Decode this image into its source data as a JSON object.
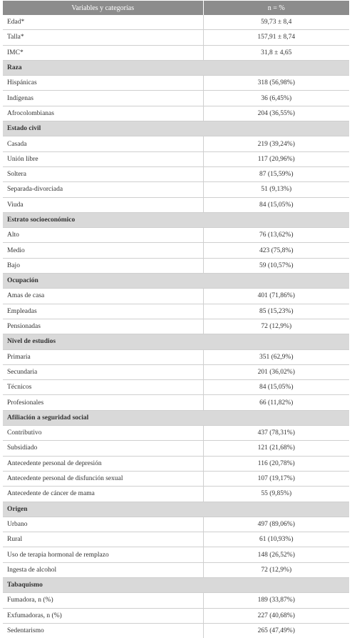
{
  "table": {
    "headers": [
      "Variables y categorías",
      "n = %"
    ],
    "rows": [
      {
        "label": "Edad*",
        "value": "59,73 ± 8,4"
      },
      {
        "label": "Talla*",
        "value": "157,91 ± 8,74"
      },
      {
        "label": "IMC*",
        "value": "31,8 ± 4,65"
      },
      {
        "label": "Raza",
        "section": true
      },
      {
        "label": "Hispánicas",
        "value": "318 (56,98%)"
      },
      {
        "label": "Indígenas",
        "value": "36 (6,45%)"
      },
      {
        "label": "Afrocolombianas",
        "value": "204 (36,55%)"
      },
      {
        "label": "Estado civil",
        "section": true
      },
      {
        "label": "Casada",
        "value": "219 (39,24%)"
      },
      {
        "label": "Unión libre",
        "value": "117 (20,96%)"
      },
      {
        "label": "Soltera",
        "value": "87 (15,59%)"
      },
      {
        "label": "Separada-divorciada",
        "value": "51 (9,13%)"
      },
      {
        "label": "Viuda",
        "value": "84 (15,05%)"
      },
      {
        "label": "Estrato socioeconómico",
        "section": true
      },
      {
        "label": "Alto",
        "value": "76 (13,62%)"
      },
      {
        "label": "Medio",
        "value": "423 (75,8%)"
      },
      {
        "label": "Bajo",
        "value": "59 (10,57%)"
      },
      {
        "label": "Ocupación",
        "section": true
      },
      {
        "label": "Amas de casa",
        "value": "401 (71,86%)"
      },
      {
        "label": "Empleadas",
        "value": "85 (15,23%)"
      },
      {
        "label": "Pensionadas",
        "value": "72 (12,9%)"
      },
      {
        "label": "Nivel de estudios",
        "section": true
      },
      {
        "label": "Primaria",
        "value": "351 (62,9%)"
      },
      {
        "label": "Secundaria",
        "value": "201 (36,02%)"
      },
      {
        "label": "Técnicos",
        "value": "84 (15,05%)"
      },
      {
        "label": "Profesionales",
        "value": "66 (11,82%)"
      },
      {
        "label": "Afiliación a seguridad social",
        "section": true
      },
      {
        "label": "Contributivo",
        "value": "437 (78,31%)"
      },
      {
        "label": "Subsidiado",
        "value": "121 (21,68%)"
      },
      {
        "label": "Antecedente personal de depresión",
        "value": "116 (20,78%)"
      },
      {
        "label": "Antecedente personal de disfunción sexual",
        "value": "107 (19,17%)"
      },
      {
        "label": "Antecedente de cáncer de mama",
        "value": "55 (9,85%)"
      },
      {
        "label": "Origen",
        "section": true
      },
      {
        "label": "Urbano",
        "value": "497 (89,06%)"
      },
      {
        "label": "Rural",
        "value": "61 (10,93%)"
      },
      {
        "label": "Uso de terapia hormonal de remplazo",
        "value": "148 (26,52%)"
      },
      {
        "label": "Ingesta de alcohol",
        "value": "72 (12,9%)"
      },
      {
        "label": "Tabaquismo",
        "section": true
      },
      {
        "label": "Fumadora, n (%)",
        "value": "189 (33,87%)"
      },
      {
        "label": "Exfumadoras, n (%)",
        "value": "227 (40,68%)"
      },
      {
        "label": "Sedentarismo",
        "value": "265 (47,49%)"
      }
    ]
  },
  "colors": {
    "header_bg": "#8c8c8c",
    "section_bg": "#d9d9d9",
    "grid": "#cfcfcf",
    "text": "#333333"
  }
}
